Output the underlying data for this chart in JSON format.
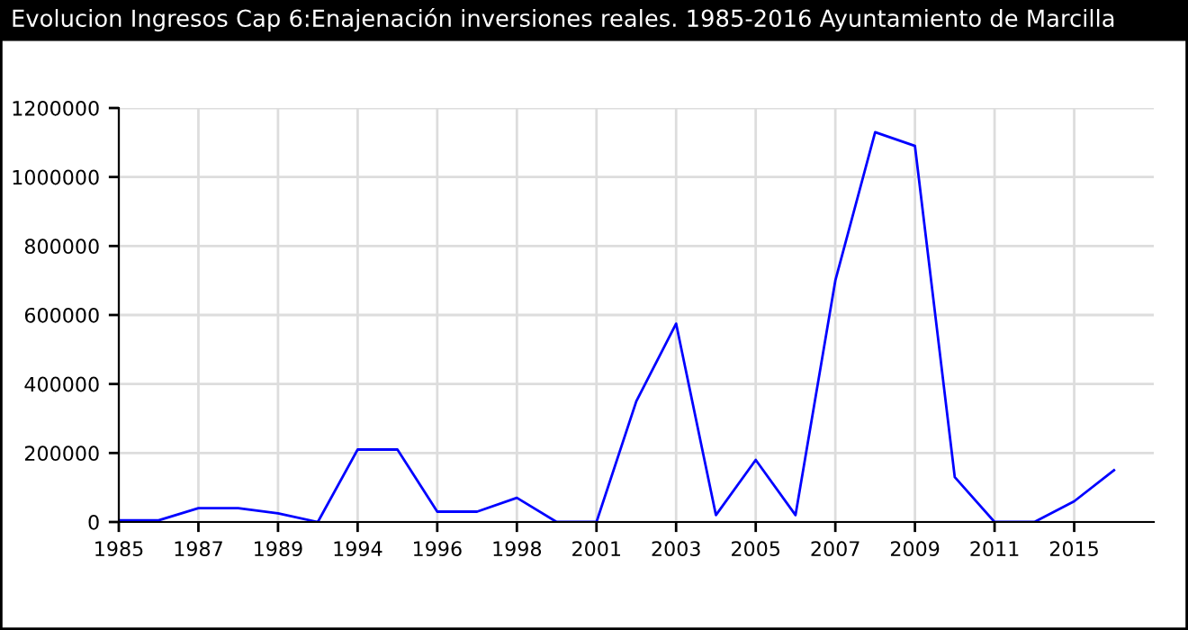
{
  "chart_data": {
    "type": "line",
    "title": "Evolucion Ingresos Cap 6:Enajenación inversiones reales. 1985-2016 Ayuntamiento de Marcilla",
    "categories": [
      "1985",
      null,
      "1987",
      null,
      "1989",
      null,
      "1994",
      null,
      "1996",
      null,
      "1998",
      null,
      "2001",
      null,
      "2003",
      null,
      "2005",
      null,
      "2007",
      null,
      "2009",
      null,
      "2011",
      null,
      "2015",
      null
    ],
    "series": [
      {
        "color": "#0000ff",
        "values": [
          5000,
          5000,
          40000,
          40000,
          25000,
          0,
          210000,
          210000,
          30000,
          30000,
          70000,
          0,
          0,
          350000,
          575000,
          20000,
          180000,
          20000,
          700000,
          1130000,
          1090000,
          130000,
          0,
          0,
          60000,
          150000
        ]
      }
    ],
    "ylim": [
      0,
      1200000
    ],
    "yticks": [
      0,
      200000,
      400000,
      600000,
      800000,
      1000000,
      1200000
    ],
    "grid": true,
    "marker": "none",
    "line_style": "solid"
  }
}
